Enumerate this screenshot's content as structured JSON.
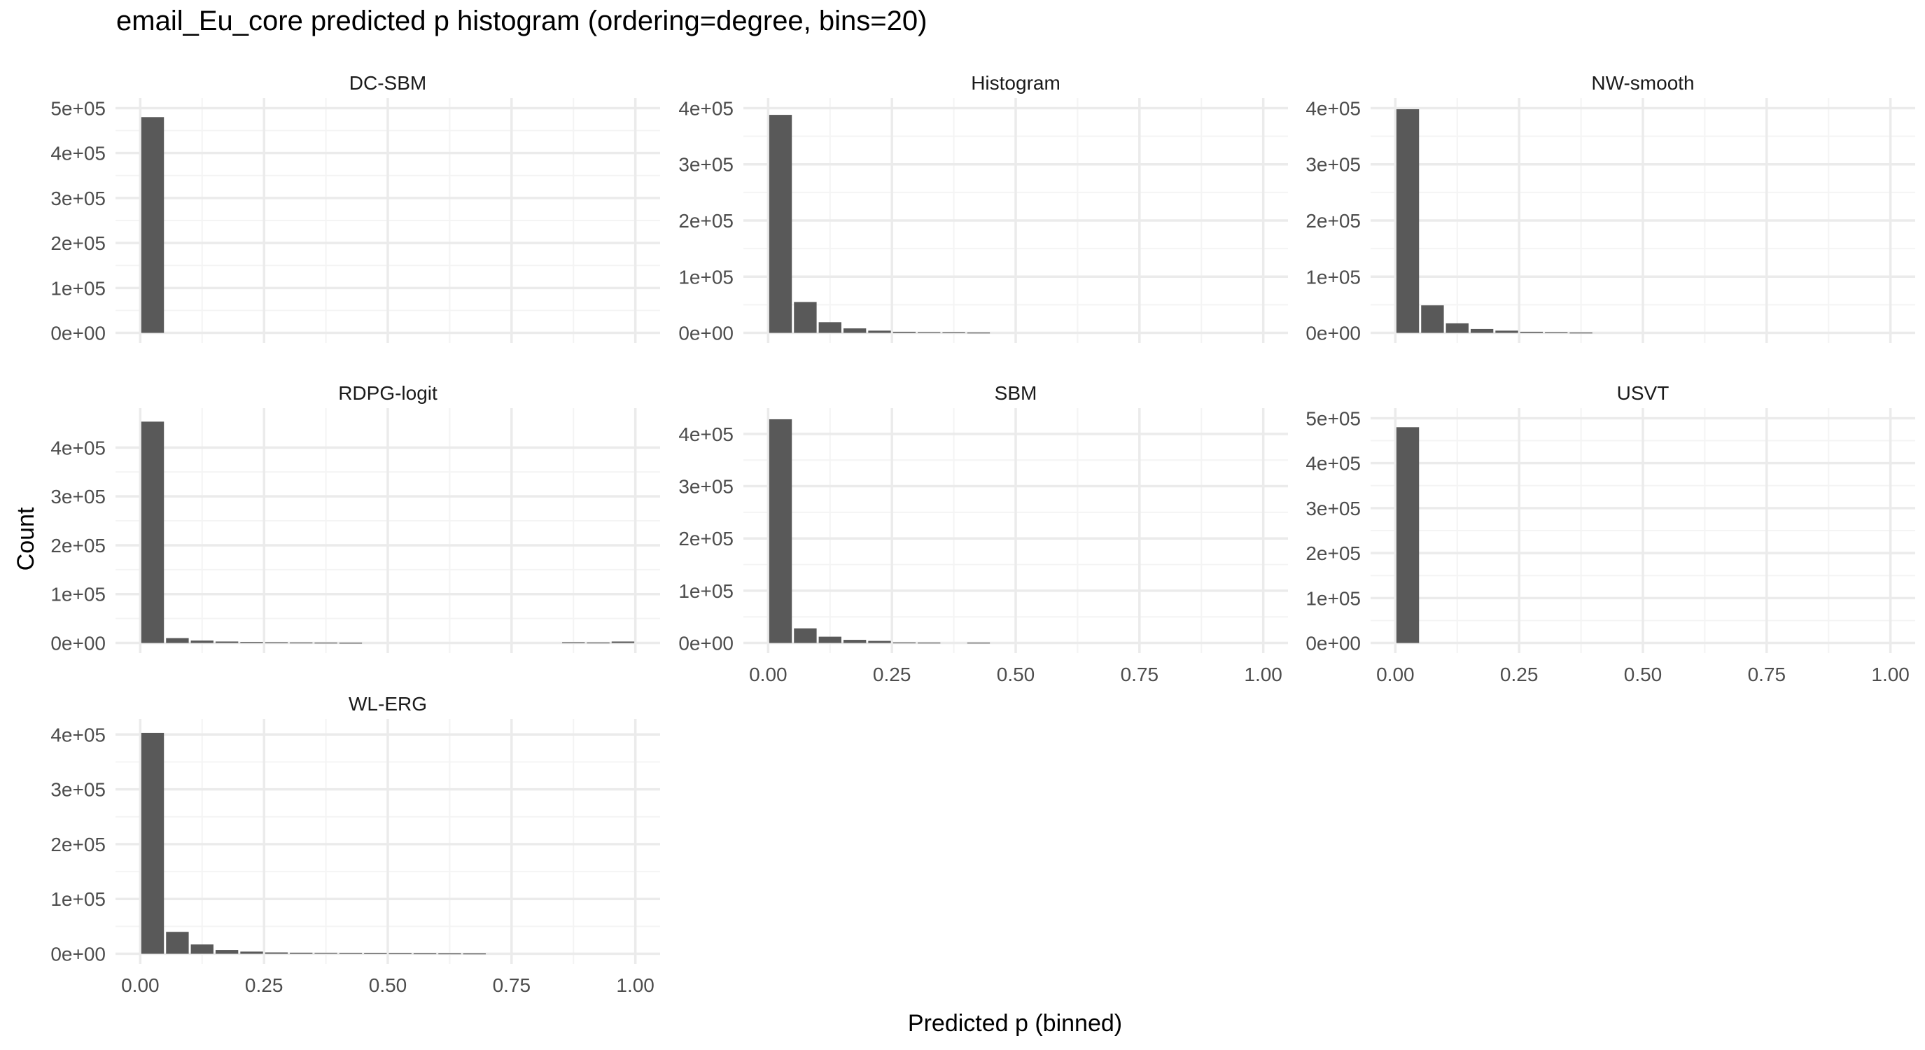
{
  "title": "email_Eu_core predicted p histogram (ordering=degree, bins=20)",
  "xlabel": "Predicted p (binned)",
  "ylabel": "Count",
  "x_ticks": [
    "0.00",
    "0.25",
    "0.50",
    "0.75",
    "1.00"
  ],
  "colors": {
    "bar": "#595959",
    "grid_major": "#ebebeb",
    "grid_minor": "#f4f4f4",
    "tick_text": "#4d4d4d"
  },
  "chart_data": {
    "type": "bar",
    "bins": 20,
    "bin_width": 0.05,
    "bin_centers": [
      0.025,
      0.075,
      0.125,
      0.175,
      0.225,
      0.275,
      0.325,
      0.375,
      0.425,
      0.475,
      0.525,
      0.575,
      0.625,
      0.675,
      0.725,
      0.775,
      0.825,
      0.875,
      0.925,
      0.975
    ],
    "xlim": [
      0,
      1
    ],
    "grid": true,
    "panels": [
      {
        "name": "DC-SBM",
        "ylim": [
          0,
          500000
        ],
        "y_ticks": [
          "0e+00",
          "1e+05",
          "2e+05",
          "3e+05",
          "4e+05",
          "5e+05"
        ],
        "y_tick_values": [
          0,
          100000,
          200000,
          300000,
          400000,
          500000
        ],
        "values": [
          480000,
          0,
          0,
          0,
          0,
          0,
          0,
          0,
          0,
          0,
          0,
          0,
          0,
          0,
          0,
          0,
          0,
          0,
          0,
          0
        ]
      },
      {
        "name": "Histogram",
        "ylim": [
          0,
          400000
        ],
        "y_ticks": [
          "0e+00",
          "1e+05",
          "2e+05",
          "3e+05",
          "4e+05"
        ],
        "y_tick_values": [
          0,
          100000,
          200000,
          300000,
          400000
        ],
        "values": [
          388000,
          55000,
          19000,
          8000,
          4000,
          2000,
          1500,
          1000,
          600,
          0,
          0,
          0,
          0,
          0,
          0,
          0,
          0,
          0,
          0,
          0
        ]
      },
      {
        "name": "NW-smooth",
        "ylim": [
          0,
          400000
        ],
        "y_ticks": [
          "0e+00",
          "1e+05",
          "2e+05",
          "3e+05",
          "4e+05"
        ],
        "y_tick_values": [
          0,
          100000,
          200000,
          300000,
          400000
        ],
        "values": [
          398000,
          49000,
          17000,
          7000,
          4000,
          2000,
          1000,
          600,
          0,
          0,
          0,
          0,
          0,
          0,
          0,
          0,
          0,
          0,
          0,
          0
        ]
      },
      {
        "name": "RDPG-logit",
        "ylim": [
          0,
          460000
        ],
        "y_ticks": [
          "0e+00",
          "1e+05",
          "2e+05",
          "3e+05",
          "4e+05"
        ],
        "y_tick_values": [
          0,
          100000,
          200000,
          300000,
          400000
        ],
        "values": [
          453000,
          10000,
          5000,
          3000,
          2000,
          1500,
          1000,
          800,
          500,
          0,
          0,
          0,
          0,
          0,
          0,
          0,
          0,
          1500,
          1000,
          3000
        ]
      },
      {
        "name": "SBM",
        "ylim": [
          0,
          430000
        ],
        "y_ticks": [
          "0e+00",
          "1e+05",
          "2e+05",
          "3e+05",
          "4e+05"
        ],
        "y_tick_values": [
          0,
          100000,
          200000,
          300000,
          400000
        ],
        "values": [
          428000,
          28000,
          12000,
          6000,
          4000,
          1000,
          800,
          0,
          700,
          0,
          0,
          0,
          0,
          0,
          0,
          0,
          0,
          0,
          0,
          0
        ]
      },
      {
        "name": "USVT",
        "ylim": [
          0,
          500000
        ],
        "y_ticks": [
          "0e+00",
          "1e+05",
          "2e+05",
          "3e+05",
          "4e+05",
          "5e+05"
        ],
        "y_tick_values": [
          0,
          100000,
          200000,
          300000,
          400000,
          500000
        ],
        "values": [
          480000,
          0,
          0,
          0,
          0,
          0,
          0,
          0,
          0,
          0,
          0,
          0,
          0,
          0,
          0,
          0,
          0,
          0,
          0,
          0
        ]
      },
      {
        "name": "WL-ERG",
        "ylim": [
          0,
          410000
        ],
        "y_ticks": [
          "0e+00",
          "1e+05",
          "2e+05",
          "3e+05",
          "4e+05"
        ],
        "y_tick_values": [
          0,
          100000,
          200000,
          300000,
          400000
        ],
        "values": [
          403000,
          40000,
          17000,
          7000,
          4000,
          2500,
          2000,
          1500,
          1200,
          1000,
          900,
          800,
          700,
          600,
          0,
          0,
          0,
          0,
          0,
          0
        ]
      }
    ]
  }
}
